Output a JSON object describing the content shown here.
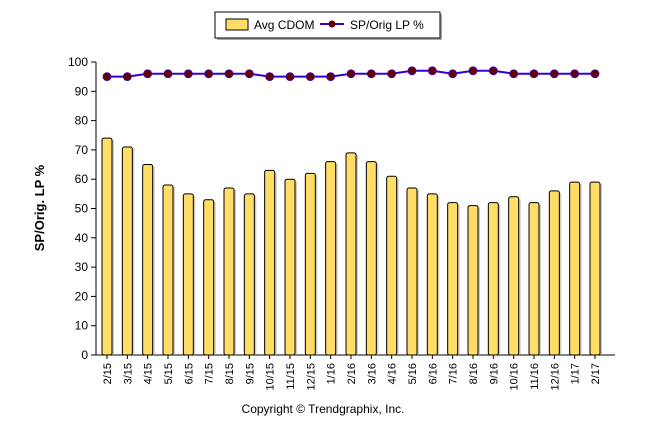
{
  "chart_data": {
    "type": "bar+line",
    "title": "",
    "xlabel": "",
    "ylabel": "SP/Orig. LP %",
    "ylim": [
      0,
      100
    ],
    "yticks": [
      0,
      10,
      20,
      30,
      40,
      50,
      60,
      70,
      80,
      90,
      100
    ],
    "categories": [
      "2/15",
      "3/15",
      "4/15",
      "5/15",
      "6/15",
      "7/15",
      "8/15",
      "9/15",
      "10/15",
      "11/15",
      "12/15",
      "1/16",
      "2/16",
      "3/16",
      "4/16",
      "5/16",
      "6/16",
      "7/16",
      "8/16",
      "9/16",
      "10/16",
      "11/16",
      "12/16",
      "1/17",
      "2/17"
    ],
    "series": [
      {
        "name": "Avg CDOM",
        "type": "bar",
        "color": "#ffdd66",
        "values": [
          74,
          71,
          65,
          58,
          55,
          53,
          57,
          55,
          63,
          60,
          62,
          66,
          69,
          66,
          61,
          57,
          55,
          52,
          51,
          52,
          54,
          52,
          56,
          59,
          59
        ]
      },
      {
        "name": "SP/Orig LP %",
        "type": "line",
        "color": "#3300cc",
        "marker_color": "#660000",
        "values": [
          95,
          95,
          96,
          96,
          96,
          96,
          96,
          96,
          95,
          95,
          95,
          95,
          96,
          96,
          96,
          97,
          97,
          96,
          97,
          97,
          96,
          96,
          96,
          96,
          96
        ]
      }
    ],
    "legend": "top-center",
    "grid": false
  },
  "footer": {
    "copyright": "Copyright © Trendgraphix, Inc."
  }
}
